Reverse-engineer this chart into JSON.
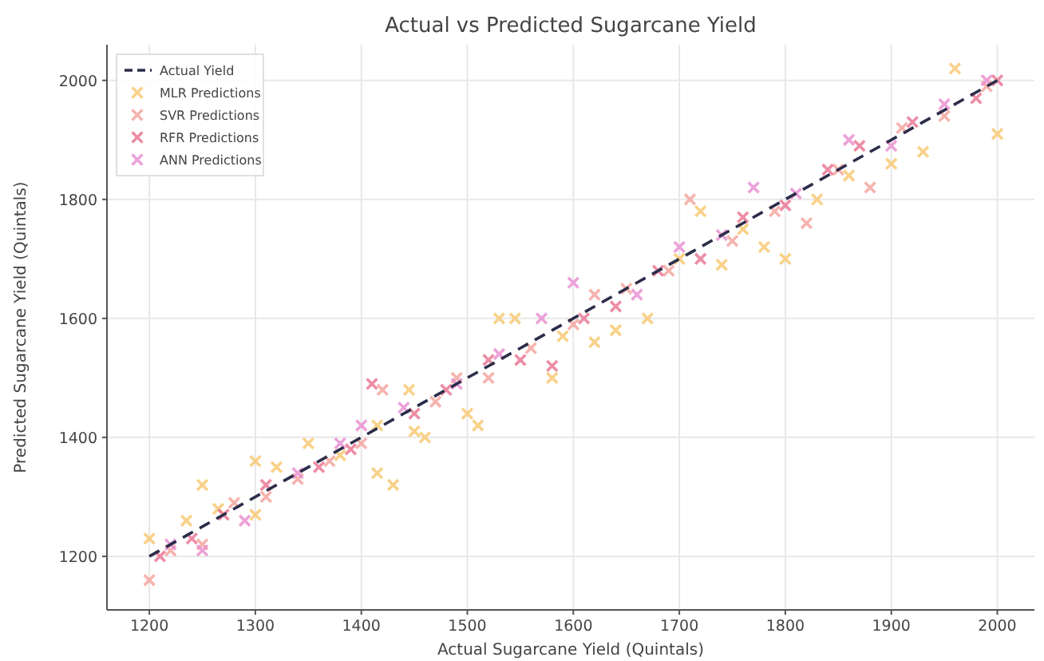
{
  "chart_data": {
    "type": "scatter",
    "title": "Actual vs Predicted Sugarcane Yield",
    "xlabel": "Actual Sugarcane Yield (Quintals)",
    "ylabel": "Predicted Sugarcane Yield (Quintals)",
    "xlim": [
      1160,
      2035
    ],
    "xticks": [
      1200,
      1300,
      1400,
      1500,
      1600,
      1700,
      1800,
      1900,
      2000
    ],
    "ylim": [
      1110,
      2060
    ],
    "yticks": [
      1200,
      1400,
      1600,
      1800,
      2000
    ],
    "grid": true,
    "legend": "top left",
    "marker": "cross",
    "series": [
      {
        "name": "Actual Yield",
        "type": "line",
        "line_style": "dashed",
        "marker": "none",
        "color": "#2b2d4a",
        "x": [
          1200,
          2000
        ],
        "values": [
          1200,
          2000
        ]
      },
      {
        "name": "MLR Predictions",
        "color": "#f7c66b",
        "x": [
          1200,
          1235,
          1250,
          1265,
          1300,
          1300,
          1320,
          1350,
          1380,
          1415,
          1430,
          1415,
          1445,
          1450,
          1460,
          1500,
          1510,
          1530,
          1545,
          1580,
          1590,
          1620,
          1640,
          1670,
          1700,
          1720,
          1740,
          1760,
          1780,
          1800,
          1830,
          1860,
          1900,
          1930,
          1960,
          2000
        ],
        "values": [
          1230,
          1260,
          1320,
          1280,
          1360,
          1270,
          1350,
          1390,
          1370,
          1340,
          1320,
          1420,
          1480,
          1410,
          1400,
          1440,
          1420,
          1600,
          1600,
          1500,
          1570,
          1560,
          1580,
          1600,
          1700,
          1780,
          1690,
          1750,
          1720,
          1700,
          1800,
          1840,
          1860,
          1880,
          2020,
          1910
        ]
      },
      {
        "name": "SVR Predictions",
        "color": "#f4a09a",
        "x": [
          1200,
          1220,
          1250,
          1280,
          1310,
          1340,
          1370,
          1400,
          1420,
          1470,
          1490,
          1520,
          1560,
          1600,
          1620,
          1650,
          1690,
          1710,
          1750,
          1790,
          1820,
          1850,
          1880,
          1910,
          1950,
          1990
        ],
        "values": [
          1160,
          1210,
          1220,
          1290,
          1300,
          1330,
          1360,
          1390,
          1480,
          1460,
          1500,
          1500,
          1550,
          1590,
          1640,
          1650,
          1680,
          1800,
          1730,
          1780,
          1760,
          1850,
          1820,
          1920,
          1940,
          1990
        ]
      },
      {
        "name": "RFR Predictions",
        "color": "#e8708e",
        "x": [
          1210,
          1240,
          1270,
          1310,
          1360,
          1390,
          1410,
          1450,
          1480,
          1520,
          1550,
          1580,
          1610,
          1640,
          1680,
          1720,
          1760,
          1800,
          1840,
          1870,
          1920,
          1980,
          2000
        ],
        "values": [
          1200,
          1230,
          1270,
          1320,
          1350,
          1380,
          1490,
          1440,
          1480,
          1530,
          1530,
          1520,
          1600,
          1620,
          1680,
          1700,
          1770,
          1790,
          1850,
          1890,
          1930,
          1970,
          2000
        ]
      },
      {
        "name": "ANN Predictions",
        "color": "#e98bd0",
        "x": [
          1220,
          1250,
          1290,
          1340,
          1380,
          1400,
          1440,
          1490,
          1530,
          1570,
          1600,
          1660,
          1700,
          1740,
          1770,
          1810,
          1860,
          1900,
          1950,
          1990
        ],
        "values": [
          1220,
          1210,
          1260,
          1340,
          1390,
          1420,
          1450,
          1490,
          1540,
          1600,
          1660,
          1640,
          1720,
          1740,
          1820,
          1810,
          1900,
          1890,
          1960,
          2000
        ]
      }
    ]
  }
}
